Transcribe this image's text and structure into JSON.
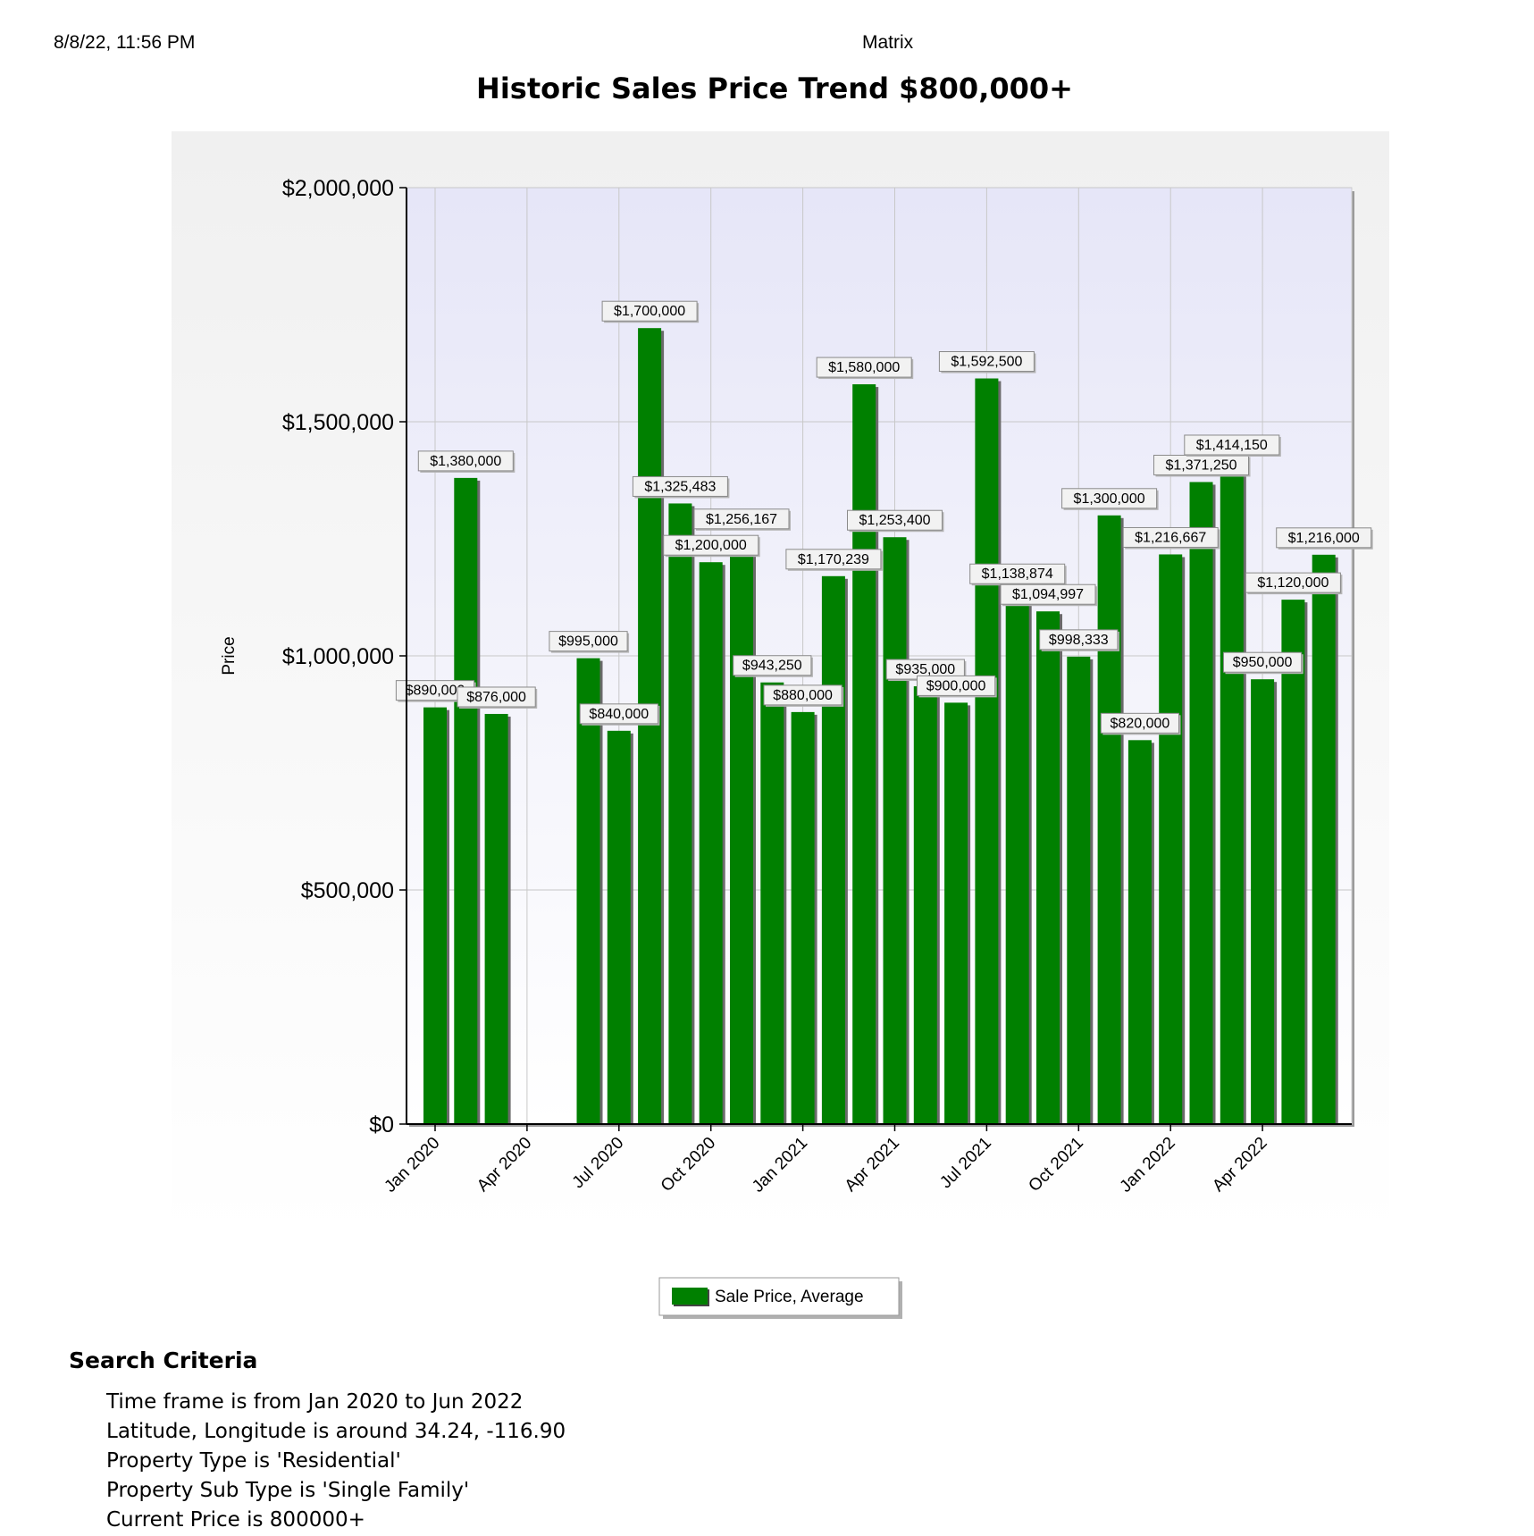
{
  "header": {
    "datetime": "8/8/22, 11:56 PM",
    "app_name": "Matrix"
  },
  "chart_title": "Historic Sales Price Trend $800,000+",
  "chart_data": {
    "type": "bar",
    "title": "Historic Sales Price Trend $800,000+",
    "xlabel": "",
    "ylabel": "Price",
    "ylim": [
      0,
      2000000
    ],
    "yticks": [
      "$0",
      "$500,000",
      "$1,000,000",
      "$1,500,000",
      "$2,000,000"
    ],
    "ytick_values": [
      0,
      500000,
      1000000,
      1500000,
      2000000
    ],
    "xtick_labels": [
      "Jan 2020",
      "Apr 2020",
      "Jul 2020",
      "Oct 2020",
      "Jan 2021",
      "Apr 2021",
      "Jul 2021",
      "Oct 2021",
      "Jan 2022",
      "Apr 2022"
    ],
    "grid": true,
    "legend_position": "bottom-center",
    "series": [
      {
        "name": "Sale Price, Average",
        "color": "#008000",
        "points": [
          {
            "month": "Jan 2020",
            "value": 890000,
            "label": "$890,000"
          },
          {
            "month": "Feb 2020",
            "value": 1380000,
            "label": "$1,380,000"
          },
          {
            "month": "Mar 2020",
            "value": 876000,
            "label": "$876,000"
          },
          {
            "month": "Jun 2020",
            "value": 995000,
            "label": "$995,000"
          },
          {
            "month": "Jul 2020",
            "value": 840000,
            "label": "$840,000"
          },
          {
            "month": "Aug 2020",
            "value": 1700000,
            "label": "$1,700,000"
          },
          {
            "month": "Sep 2020",
            "value": 1325483,
            "label": "$1,325,483"
          },
          {
            "month": "Oct 2020",
            "value": 1200000,
            "label": "$1,200,000"
          },
          {
            "month": "Nov 2020",
            "value": 1256167,
            "label": "$1,256,167"
          },
          {
            "month": "Dec 2020",
            "value": 943250,
            "label": "$943,250"
          },
          {
            "month": "Jan 2021",
            "value": 880000,
            "label": "$880,000"
          },
          {
            "month": "Feb 2021",
            "value": 1170239,
            "label": "$1,170,239"
          },
          {
            "month": "Mar 2021",
            "value": 1580000,
            "label": "$1,580,000"
          },
          {
            "month": "Apr 2021",
            "value": 1253400,
            "label": "$1,253,400"
          },
          {
            "month": "May 2021",
            "value": 935000,
            "label": "$935,000"
          },
          {
            "month": "Jun 2021",
            "value": 900000,
            "label": "$900,000"
          },
          {
            "month": "Jul 2021",
            "value": 1592500,
            "label": "$1,592,500"
          },
          {
            "month": "Aug 2021",
            "value": 1138874,
            "label": "$1,138,874"
          },
          {
            "month": "Sep 2021",
            "value": 1094997,
            "label": "$1,094,997"
          },
          {
            "month": "Oct 2021",
            "value": 998333,
            "label": "$998,333"
          },
          {
            "month": "Nov 2021",
            "value": 1300000,
            "label": "$1,300,000"
          },
          {
            "month": "Dec 2021",
            "value": 820000,
            "label": "$820,000"
          },
          {
            "month": "Jan 2022",
            "value": 1216667,
            "label": "$1,216,667"
          },
          {
            "month": "Feb 2022",
            "value": 1371250,
            "label": "$1,371,250"
          },
          {
            "month": "Mar 2022",
            "value": 1414150,
            "label": "$1,414,150"
          },
          {
            "month": "Apr 2022",
            "value": 950000,
            "label": "$950,000"
          },
          {
            "month": "May 2022",
            "value": 1120000,
            "label": "$1,120,000"
          },
          {
            "month": "Jun 2022",
            "value": 1216000,
            "label": "$1,216,000"
          }
        ]
      }
    ]
  },
  "legend": {
    "label": "Sale Price, Average"
  },
  "search_criteria": {
    "heading": "Search Criteria",
    "items": [
      "Time frame is from Jan 2020 to Jun 2022",
      "Latitude, Longitude is around 34.24, -116.90",
      "Property Type is 'Residential'",
      "Property Sub Type is 'Single Family'",
      "Current Price is 800000+"
    ]
  }
}
